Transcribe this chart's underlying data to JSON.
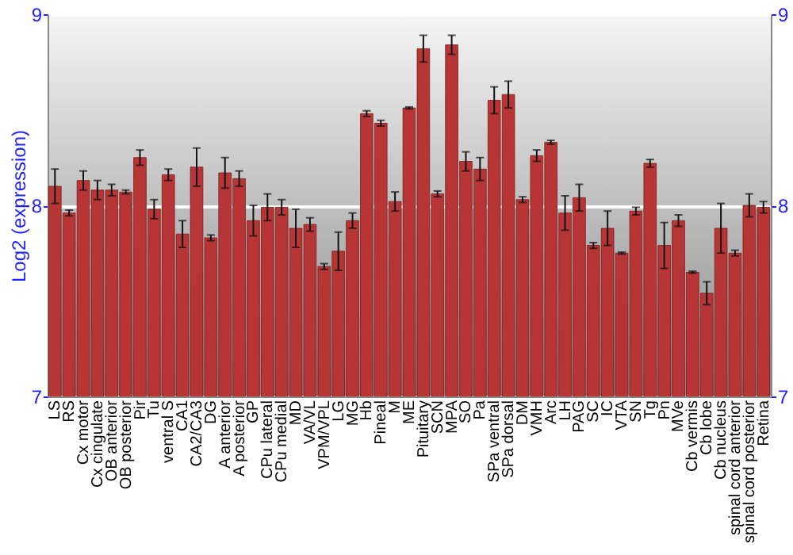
{
  "chart_data": {
    "type": "bar",
    "ylabel": "Log2 (expression)",
    "categories": [
      "LS",
      "RS",
      "Cx motor",
      "Cx cingulate",
      "OB anterior",
      "OB posterior",
      "Pir",
      "Tu",
      "ventral S",
      "CA1",
      "CA2/CA3",
      "DG",
      "A anterior",
      "A posterior",
      "GP",
      "CPu lateral",
      "CPu medial",
      "MD",
      "VA/VL",
      "VPM/VPL",
      "LG",
      "MG",
      "Hb",
      "Pineal",
      "M",
      "ME",
      "Pituitary",
      "SCN",
      "MPA",
      "SO",
      "Pa",
      "SPa ventral",
      "SPa dorsal",
      "DM",
      "VMH",
      "Arc",
      "LH",
      "PAG",
      "SC",
      "IC",
      "VTA",
      "SN",
      "Tg",
      "Pn",
      "MVe",
      "Cb vermis",
      "Cb lobe",
      "Cb nucleus",
      "spinal cord anterior",
      "spinal cord posterior",
      "Retina"
    ],
    "series": [
      {
        "color": "#b83535",
        "values": [
          8.1,
          7.96,
          8.13,
          8.08,
          8.08,
          8.07,
          8.25,
          7.98,
          8.16,
          7.85,
          8.2,
          7.83,
          8.17,
          8.14,
          7.92,
          7.99,
          7.99,
          7.88,
          7.9,
          7.68,
          7.76,
          7.92,
          8.48,
          8.43,
          8.02,
          8.51,
          8.82,
          8.06,
          8.84,
          8.23,
          8.19,
          8.55,
          8.58,
          8.03,
          8.26,
          8.33,
          7.96,
          8.04,
          7.79,
          7.88,
          7.75,
          7.97,
          8.22,
          7.79,
          7.92,
          7.65,
          7.54,
          7.88,
          7.75,
          8.0,
          7.99
        ],
        "errors": [
          0.09,
          0.015,
          0.05,
          0.05,
          0.03,
          0.01,
          0.04,
          0.05,
          0.03,
          0.07,
          0.1,
          0.015,
          0.08,
          0.04,
          0.08,
          0.07,
          0.04,
          0.1,
          0.035,
          0.015,
          0.1,
          0.04,
          0.015,
          0.015,
          0.05,
          0.005,
          0.07,
          0.015,
          0.05,
          0.05,
          0.06,
          0.07,
          0.07,
          0.015,
          0.03,
          0.01,
          0.09,
          0.07,
          0.015,
          0.09,
          0.005,
          0.02,
          0.02,
          0.12,
          0.03,
          0.005,
          0.06,
          0.13,
          0.015,
          0.06,
          0.03
        ]
      }
    ],
    "ylim": [
      7,
      9
    ],
    "yticks": [
      7,
      8,
      9
    ],
    "y2lim": [
      7,
      9
    ],
    "y2ticks": [
      7,
      8,
      9
    ],
    "grid": "y"
  }
}
